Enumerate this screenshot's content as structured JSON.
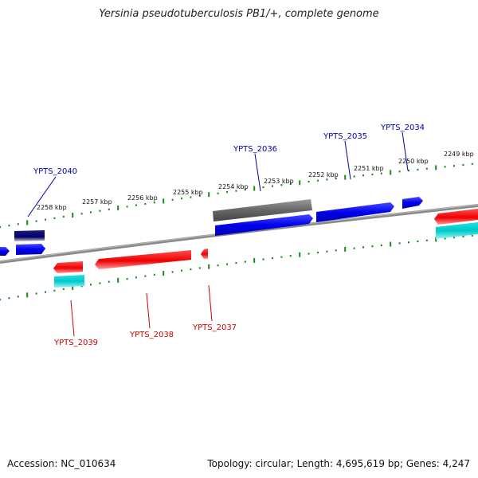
{
  "title": "Yersinia pseudotuberculosis PB1/+, complete genome",
  "footer": {
    "accession": "Accession: NC_010634",
    "summary": "Topology: circular; Length: 4,695,619 bp; Genes: 4,247"
  },
  "scale_labels": [
    "2258 kbp",
    "2257 kbp",
    "2256 kbp",
    "2255 kbp",
    "2254 kbp",
    "2253 kbp",
    "2252 kbp",
    "2251 kbp",
    "2250 kbp",
    "2249 kbp"
  ],
  "gene_labels_top": [
    "YPTS_2040",
    "YPTS_2036",
    "YPTS_2035",
    "YPTS_2034"
  ],
  "gene_labels_bottom": [
    "YPTS_2039",
    "YPTS_2038",
    "YPTS_2037"
  ],
  "colors": {
    "forward": "#0000ee",
    "reverse": "#ee0000",
    "forward_label": "#0000aa",
    "reverse_label": "#cc0000",
    "cds_forward": "#666666",
    "cds_reverse": "#00cccc",
    "navy": "#000066",
    "ticks": "#1a8a1a",
    "backbone": "#777777"
  }
}
